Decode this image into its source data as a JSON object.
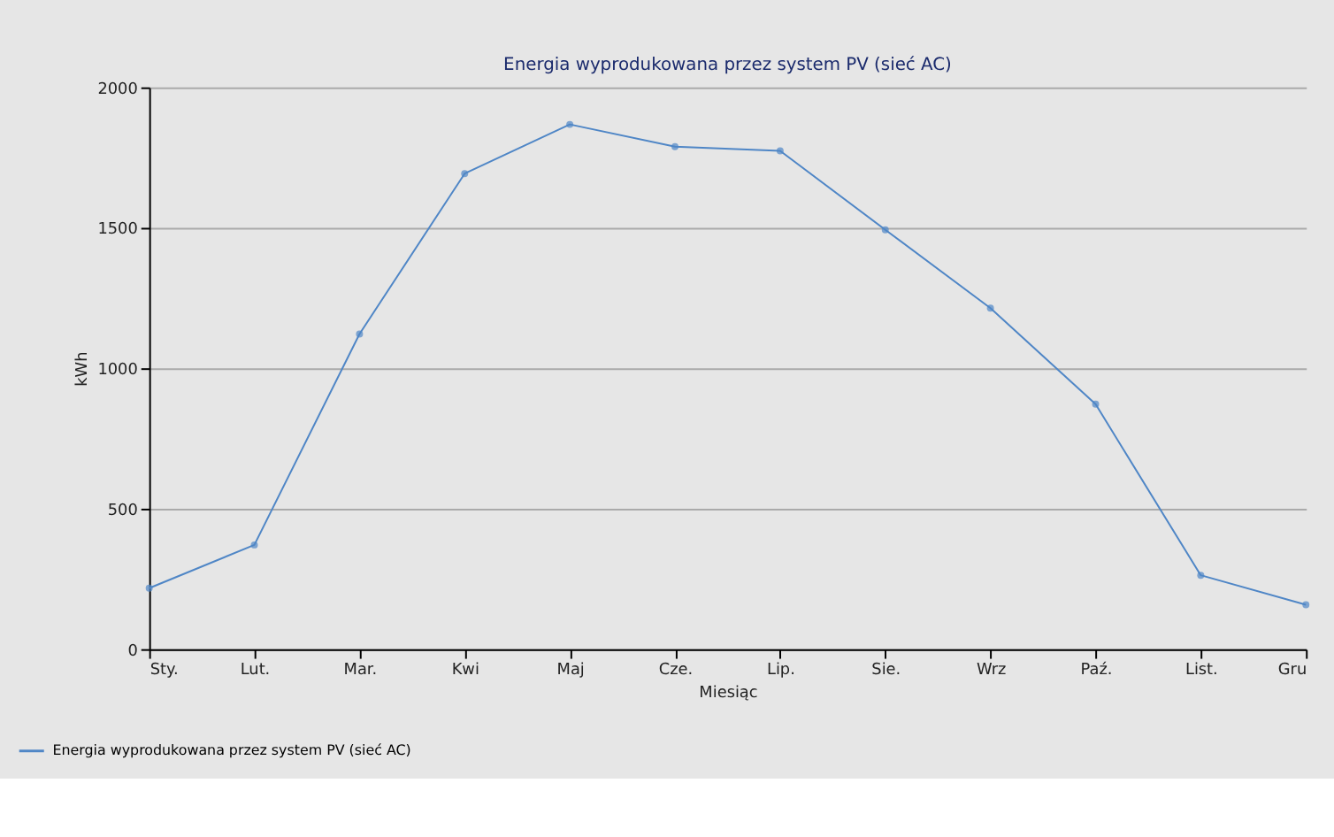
{
  "chart_data": {
    "type": "line",
    "title": "Energia wyprodukowana przez system PV (sieć AC)",
    "xlabel": "Miesiąc",
    "ylabel": "kWh",
    "categories": [
      "Sty.",
      "Lut.",
      "Mar.",
      "Kwi",
      "Maj",
      "Cze.",
      "Lip.",
      "Sie.",
      "Wrz",
      "Paź.",
      "List.",
      "Gru"
    ],
    "series": [
      {
        "name": "Energia wyprodukowana przez system PV (sieć AC)",
        "color": "#4f86c6",
        "values": [
          217,
          371,
          1122,
          1693,
          1868,
          1789,
          1774,
          1493,
          1214,
          872,
          263,
          158
        ]
      }
    ],
    "ylim": [
      0,
      2000
    ],
    "yticks": [
      0,
      500,
      1000,
      1500,
      2000
    ],
    "grid": "y",
    "legend": "bottom left",
    "marker": "circle",
    "line_style": "solid"
  }
}
